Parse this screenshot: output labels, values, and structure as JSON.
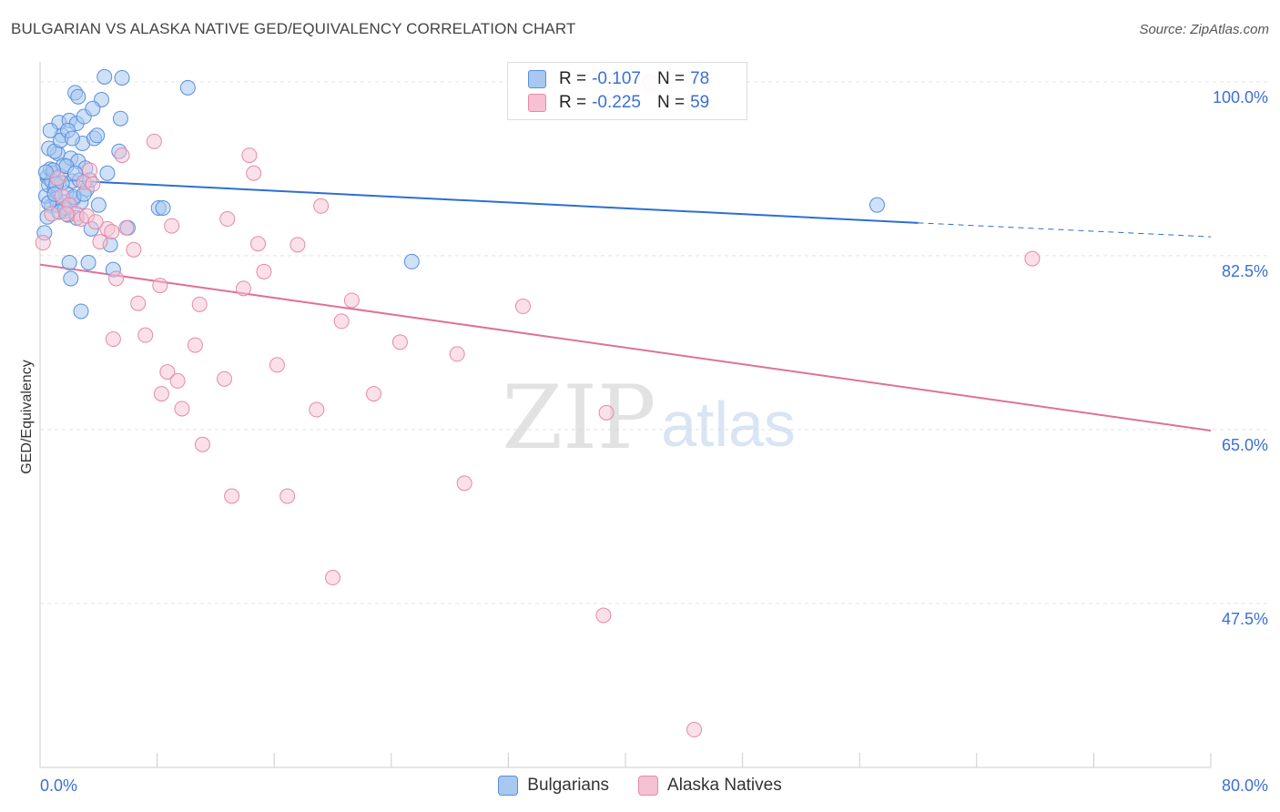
{
  "header": {
    "title": "BULGARIAN VS ALASKA NATIVE GED/EQUIVALENCY CORRELATION CHART",
    "source": "Source: ZipAtlas.com"
  },
  "legend": {
    "bulgarians": {
      "r_label": "R =",
      "r_value": "-0.107",
      "n_label": "N =",
      "n_value": "78",
      "name": "Bulgarians"
    },
    "alaska": {
      "r_label": "R =",
      "r_value": "-0.225",
      "n_label": "N =",
      "n_value": "59",
      "name": "Alaska Natives"
    }
  },
  "colors": {
    "blue_fill": "#a8c8f0",
    "blue_stroke": "#5a8fdc",
    "blue_line": "#2d6fce",
    "pink_fill": "#f6c1d2",
    "pink_stroke": "#e58aa8",
    "pink_line": "#e0709a",
    "tick_label": "#3a6fd8"
  },
  "watermark": {
    "zip": "ZIP",
    "atlas": "atlas"
  },
  "chart_data": {
    "type": "scatter",
    "title": "BULGARIAN VS ALASKA NATIVE GED/EQUIVALENCY CORRELATION CHART",
    "xlabel": "",
    "ylabel": "GED/Equivalency",
    "xlim": [
      0,
      80
    ],
    "ylim": [
      31,
      102
    ],
    "x_tick_labels": [
      "0.0%",
      "80.0%"
    ],
    "y_ticks": [
      100,
      82.5,
      65,
      47.5
    ],
    "y_tick_labels": [
      "100.0%",
      "82.5%",
      "65.0%",
      "47.5%"
    ],
    "grid": true,
    "legend_position": "bottom-center",
    "series": [
      {
        "name": "Bulgarians",
        "trend": {
          "r": -0.107,
          "n": 78,
          "x0": 0,
          "y0": 90.2,
          "x1": 60,
          "y1": 85.8,
          "dash_to_x": 80,
          "dash_to_y": 84.4
        },
        "points": [
          [
            0.3,
            84.8
          ],
          [
            0.4,
            88.5
          ],
          [
            0.5,
            90.4
          ],
          [
            0.6,
            89.6
          ],
          [
            0.7,
            91.2
          ],
          [
            0.8,
            87.5
          ],
          [
            0.9,
            90.8
          ],
          [
            1.0,
            89.3
          ],
          [
            1.1,
            88.2
          ],
          [
            1.2,
            92.8
          ],
          [
            1.3,
            95.9
          ],
          [
            1.4,
            90.5
          ],
          [
            1.5,
            94.6
          ],
          [
            1.6,
            91.6
          ],
          [
            1.7,
            87.0
          ],
          [
            1.8,
            88.8
          ],
          [
            1.9,
            86.6
          ],
          [
            2.0,
            96.1
          ],
          [
            2.1,
            92.3
          ],
          [
            2.2,
            90.0
          ],
          [
            2.3,
            88.2
          ],
          [
            2.4,
            98.9
          ],
          [
            2.5,
            95.8
          ],
          [
            2.6,
            92.0
          ],
          [
            2.7,
            90.1
          ],
          [
            2.8,
            87.9
          ],
          [
            2.9,
            93.8
          ],
          [
            3.0,
            96.5
          ],
          [
            3.1,
            91.3
          ],
          [
            3.2,
            89.2
          ],
          [
            0.5,
            86.4
          ],
          [
            0.6,
            93.3
          ],
          [
            0.7,
            95.1
          ],
          [
            0.8,
            90.0
          ],
          [
            1.0,
            93.0
          ],
          [
            1.2,
            87.6
          ],
          [
            1.4,
            94.1
          ],
          [
            1.6,
            87.9
          ],
          [
            1.8,
            91.5
          ],
          [
            2.0,
            81.8
          ],
          [
            2.1,
            80.2
          ],
          [
            2.6,
            98.5
          ],
          [
            3.4,
            90.1
          ],
          [
            3.5,
            85.2
          ],
          [
            3.7,
            94.3
          ],
          [
            3.9,
            94.6
          ],
          [
            4.0,
            87.6
          ],
          [
            4.2,
            98.2
          ],
          [
            4.4,
            100.5
          ],
          [
            4.6,
            90.8
          ],
          [
            4.8,
            83.6
          ],
          [
            5.0,
            81.1
          ],
          [
            5.4,
            93.0
          ],
          [
            5.5,
            96.3
          ],
          [
            5.6,
            100.4
          ],
          [
            6.0,
            85.3
          ],
          [
            8.1,
            87.3
          ],
          [
            8.4,
            87.3
          ],
          [
            10.1,
            99.4
          ],
          [
            25.4,
            81.9
          ],
          [
            57.2,
            87.6
          ],
          [
            2.8,
            76.9
          ],
          [
            1.5,
            89.8
          ],
          [
            1.7,
            87.3
          ],
          [
            1.9,
            95.1
          ],
          [
            2.3,
            88.4
          ],
          [
            3.3,
            81.8
          ],
          [
            3.6,
            97.3
          ],
          [
            0.9,
            91.1
          ],
          [
            1.1,
            89.7
          ],
          [
            2.5,
            86.3
          ],
          [
            1.3,
            86.9
          ],
          [
            0.4,
            90.9
          ],
          [
            2.2,
            94.3
          ],
          [
            3.0,
            88.7
          ],
          [
            0.6,
            87.8
          ],
          [
            1.0,
            88.7
          ],
          [
            2.4,
            90.8
          ]
        ]
      },
      {
        "name": "Alaska Natives",
        "trend": {
          "r": -0.225,
          "n": 59,
          "x0": 0,
          "y0": 81.6,
          "x1": 80,
          "y1": 64.9
        },
        "points": [
          [
            0.2,
            83.8
          ],
          [
            1.5,
            88.5
          ],
          [
            2.0,
            87.6
          ],
          [
            2.5,
            86.7
          ],
          [
            3.0,
            89.9
          ],
          [
            3.4,
            91.1
          ],
          [
            3.6,
            89.7
          ],
          [
            4.1,
            83.9
          ],
          [
            4.6,
            85.2
          ],
          [
            5.0,
            74.1
          ],
          [
            5.2,
            80.2
          ],
          [
            5.6,
            92.6
          ],
          [
            5.9,
            85.3
          ],
          [
            6.4,
            83.1
          ],
          [
            6.7,
            77.7
          ],
          [
            7.2,
            74.5
          ],
          [
            7.8,
            94.0
          ],
          [
            8.2,
            79.5
          ],
          [
            8.3,
            68.6
          ],
          [
            8.7,
            70.8
          ],
          [
            9.0,
            85.5
          ],
          [
            9.4,
            69.9
          ],
          [
            9.7,
            67.1
          ],
          [
            10.6,
            73.5
          ],
          [
            10.9,
            77.6
          ],
          [
            11.1,
            63.5
          ],
          [
            12.6,
            70.1
          ],
          [
            12.8,
            86.2
          ],
          [
            13.1,
            58.3
          ],
          [
            13.9,
            79.2
          ],
          [
            14.3,
            92.6
          ],
          [
            14.6,
            90.8
          ],
          [
            14.9,
            83.7
          ],
          [
            15.3,
            80.9
          ],
          [
            16.2,
            71.5
          ],
          [
            16.9,
            58.3
          ],
          [
            17.6,
            83.6
          ],
          [
            18.9,
            67.0
          ],
          [
            19.2,
            87.5
          ],
          [
            20.0,
            50.1
          ],
          [
            20.6,
            75.9
          ],
          [
            21.3,
            78.0
          ],
          [
            22.8,
            68.6
          ],
          [
            24.6,
            73.8
          ],
          [
            28.5,
            72.6
          ],
          [
            29.0,
            59.6
          ],
          [
            33.0,
            77.4
          ],
          [
            38.5,
            46.3
          ],
          [
            38.7,
            66.7
          ],
          [
            41.7,
            99.9
          ],
          [
            44.7,
            34.8
          ],
          [
            67.8,
            82.2
          ],
          [
            1.2,
            90.3
          ],
          [
            2.8,
            86.2
          ],
          [
            3.2,
            86.5
          ],
          [
            0.8,
            86.7
          ],
          [
            1.8,
            86.7
          ],
          [
            3.8,
            85.9
          ],
          [
            4.9,
            84.9
          ]
        ]
      }
    ]
  }
}
